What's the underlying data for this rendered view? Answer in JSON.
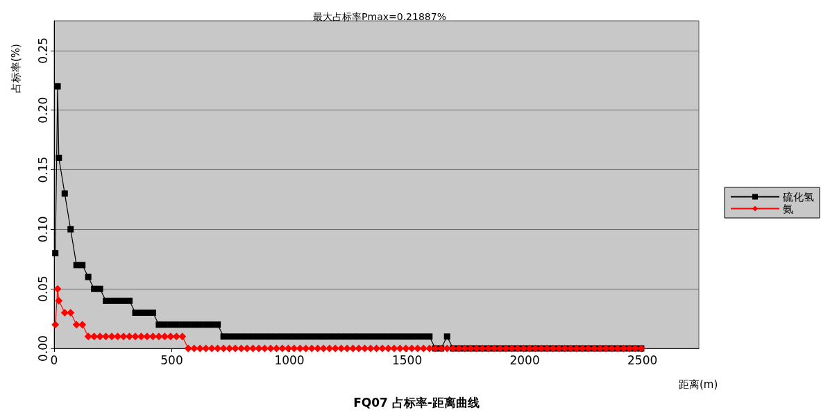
{
  "chart_data": {
    "type": "line",
    "title": "FQ07 占标率-距离曲线",
    "subtitle": "最大占标率Pmax=0.21887%",
    "xlabel": "距离(m)",
    "ylabel": "占标率(%)",
    "x": [
      5,
      15,
      20,
      45,
      70,
      95,
      120,
      145,
      170,
      195,
      220,
      245,
      270,
      295,
      320,
      345,
      370,
      395,
      420,
      445,
      470,
      495,
      520,
      545,
      570,
      595,
      620,
      645,
      670,
      695,
      720,
      745,
      770,
      795,
      820,
      845,
      870,
      895,
      920,
      945,
      970,
      995,
      1020,
      1045,
      1070,
      1095,
      1120,
      1145,
      1170,
      1195,
      1220,
      1245,
      1270,
      1295,
      1320,
      1345,
      1370,
      1395,
      1420,
      1445,
      1470,
      1495,
      1520,
      1545,
      1570,
      1595,
      1620,
      1645,
      1670,
      1695,
      1720,
      1745,
      1770,
      1795,
      1820,
      1845,
      1870,
      1895,
      1920,
      1945,
      1970,
      1995,
      2020,
      2045,
      2070,
      2095,
      2120,
      2145,
      2170,
      2195,
      2220,
      2245,
      2270,
      2295,
      2320,
      2345,
      2370,
      2395,
      2420,
      2445,
      2470,
      2495
    ],
    "series": [
      {
        "name": "硫化氢",
        "color": "#000000",
        "marker": "square",
        "values": [
          0.08,
          0.22,
          0.16,
          0.13,
          0.1,
          0.07,
          0.07,
          0.06,
          0.05,
          0.05,
          0.04,
          0.04,
          0.04,
          0.04,
          0.04,
          0.03,
          0.03,
          0.03,
          0.03,
          0.02,
          0.02,
          0.02,
          0.02,
          0.02,
          0.02,
          0.02,
          0.02,
          0.02,
          0.02,
          0.02,
          0.01,
          0.01,
          0.01,
          0.01,
          0.01,
          0.01,
          0.01,
          0.01,
          0.01,
          0.01,
          0.01,
          0.01,
          0.01,
          0.01,
          0.01,
          0.01,
          0.01,
          0.01,
          0.01,
          0.01,
          0.01,
          0.01,
          0.01,
          0.01,
          0.01,
          0.01,
          0.01,
          0.01,
          0.01,
          0.01,
          0.01,
          0.01,
          0.01,
          0.01,
          0.01,
          0.01,
          0,
          0,
          0.01,
          0,
          0,
          0,
          0,
          0,
          0,
          0,
          0,
          0,
          0,
          0,
          0,
          0,
          0,
          0,
          0,
          0,
          0,
          0,
          0,
          0,
          0,
          0,
          0,
          0,
          0,
          0,
          0,
          0,
          0,
          0,
          0,
          0
        ]
      },
      {
        "name": "氨",
        "color": "#ff0000",
        "marker": "diamond",
        "values": [
          0.02,
          0.05,
          0.04,
          0.03,
          0.03,
          0.02,
          0.02,
          0.01,
          0.01,
          0.01,
          0.01,
          0.01,
          0.01,
          0.01,
          0.01,
          0.01,
          0.01,
          0.01,
          0.01,
          0.01,
          0.01,
          0.01,
          0.01,
          0.01,
          0,
          0,
          0,
          0,
          0,
          0,
          0,
          0,
          0,
          0,
          0,
          0,
          0,
          0,
          0,
          0,
          0,
          0,
          0,
          0,
          0,
          0,
          0,
          0,
          0,
          0,
          0,
          0,
          0,
          0,
          0,
          0,
          0,
          0,
          0,
          0,
          0,
          0,
          0,
          0,
          0,
          0,
          0,
          0,
          0,
          0,
          0,
          0,
          0,
          0,
          0,
          0,
          0,
          0,
          0,
          0,
          0,
          0,
          0,
          0,
          0,
          0,
          0,
          0,
          0,
          0,
          0,
          0,
          0,
          0,
          0,
          0,
          0,
          0,
          0,
          0,
          0,
          0
        ]
      }
    ],
    "xlim": [
      0,
      2740
    ],
    "xticks": [
      0,
      500,
      1000,
      1500,
      2000,
      2500
    ],
    "ylim": [
      0,
      0.275
    ],
    "yticks": [
      {
        "value": 0,
        "label": "0.00"
      },
      {
        "value": 0.05,
        "label": "0.05"
      },
      {
        "value": 0.1,
        "label": "0.10"
      },
      {
        "value": 0.15,
        "label": "0.15"
      },
      {
        "value": 0.2,
        "label": "0.20"
      },
      {
        "value": 0.25,
        "label": "0.25"
      }
    ],
    "grid": "y",
    "legend": "right",
    "line_style": "solid"
  }
}
